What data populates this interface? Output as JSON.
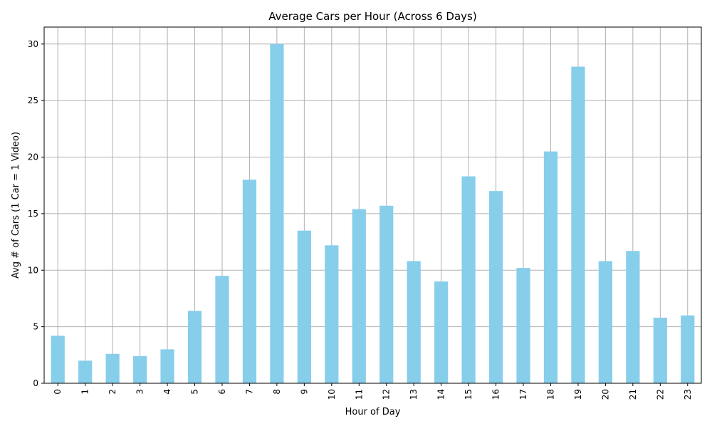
{
  "chart_data": {
    "type": "bar",
    "title": "Average Cars per Hour (Across 6 Days)",
    "xlabel": "Hour of Day",
    "ylabel": "Avg # of Cars (1 Car = 1 Video)",
    "categories": [
      "0",
      "1",
      "2",
      "3",
      "4",
      "5",
      "6",
      "7",
      "8",
      "9",
      "10",
      "11",
      "12",
      "13",
      "14",
      "15",
      "16",
      "17",
      "18",
      "19",
      "20",
      "21",
      "22",
      "23"
    ],
    "values": [
      4.2,
      2.0,
      2.6,
      2.4,
      3.0,
      6.4,
      9.5,
      18.0,
      30.0,
      13.5,
      12.2,
      15.4,
      15.7,
      10.8,
      9.0,
      18.3,
      17.0,
      10.2,
      20.5,
      28.0,
      10.8,
      11.7,
      5.8,
      6.0
    ],
    "yticks": [
      "0",
      "5",
      "10",
      "15",
      "20",
      "25",
      "30"
    ],
    "ylim": [
      0,
      31.5
    ],
    "grid": true,
    "bar_color": "#87ceeb"
  }
}
